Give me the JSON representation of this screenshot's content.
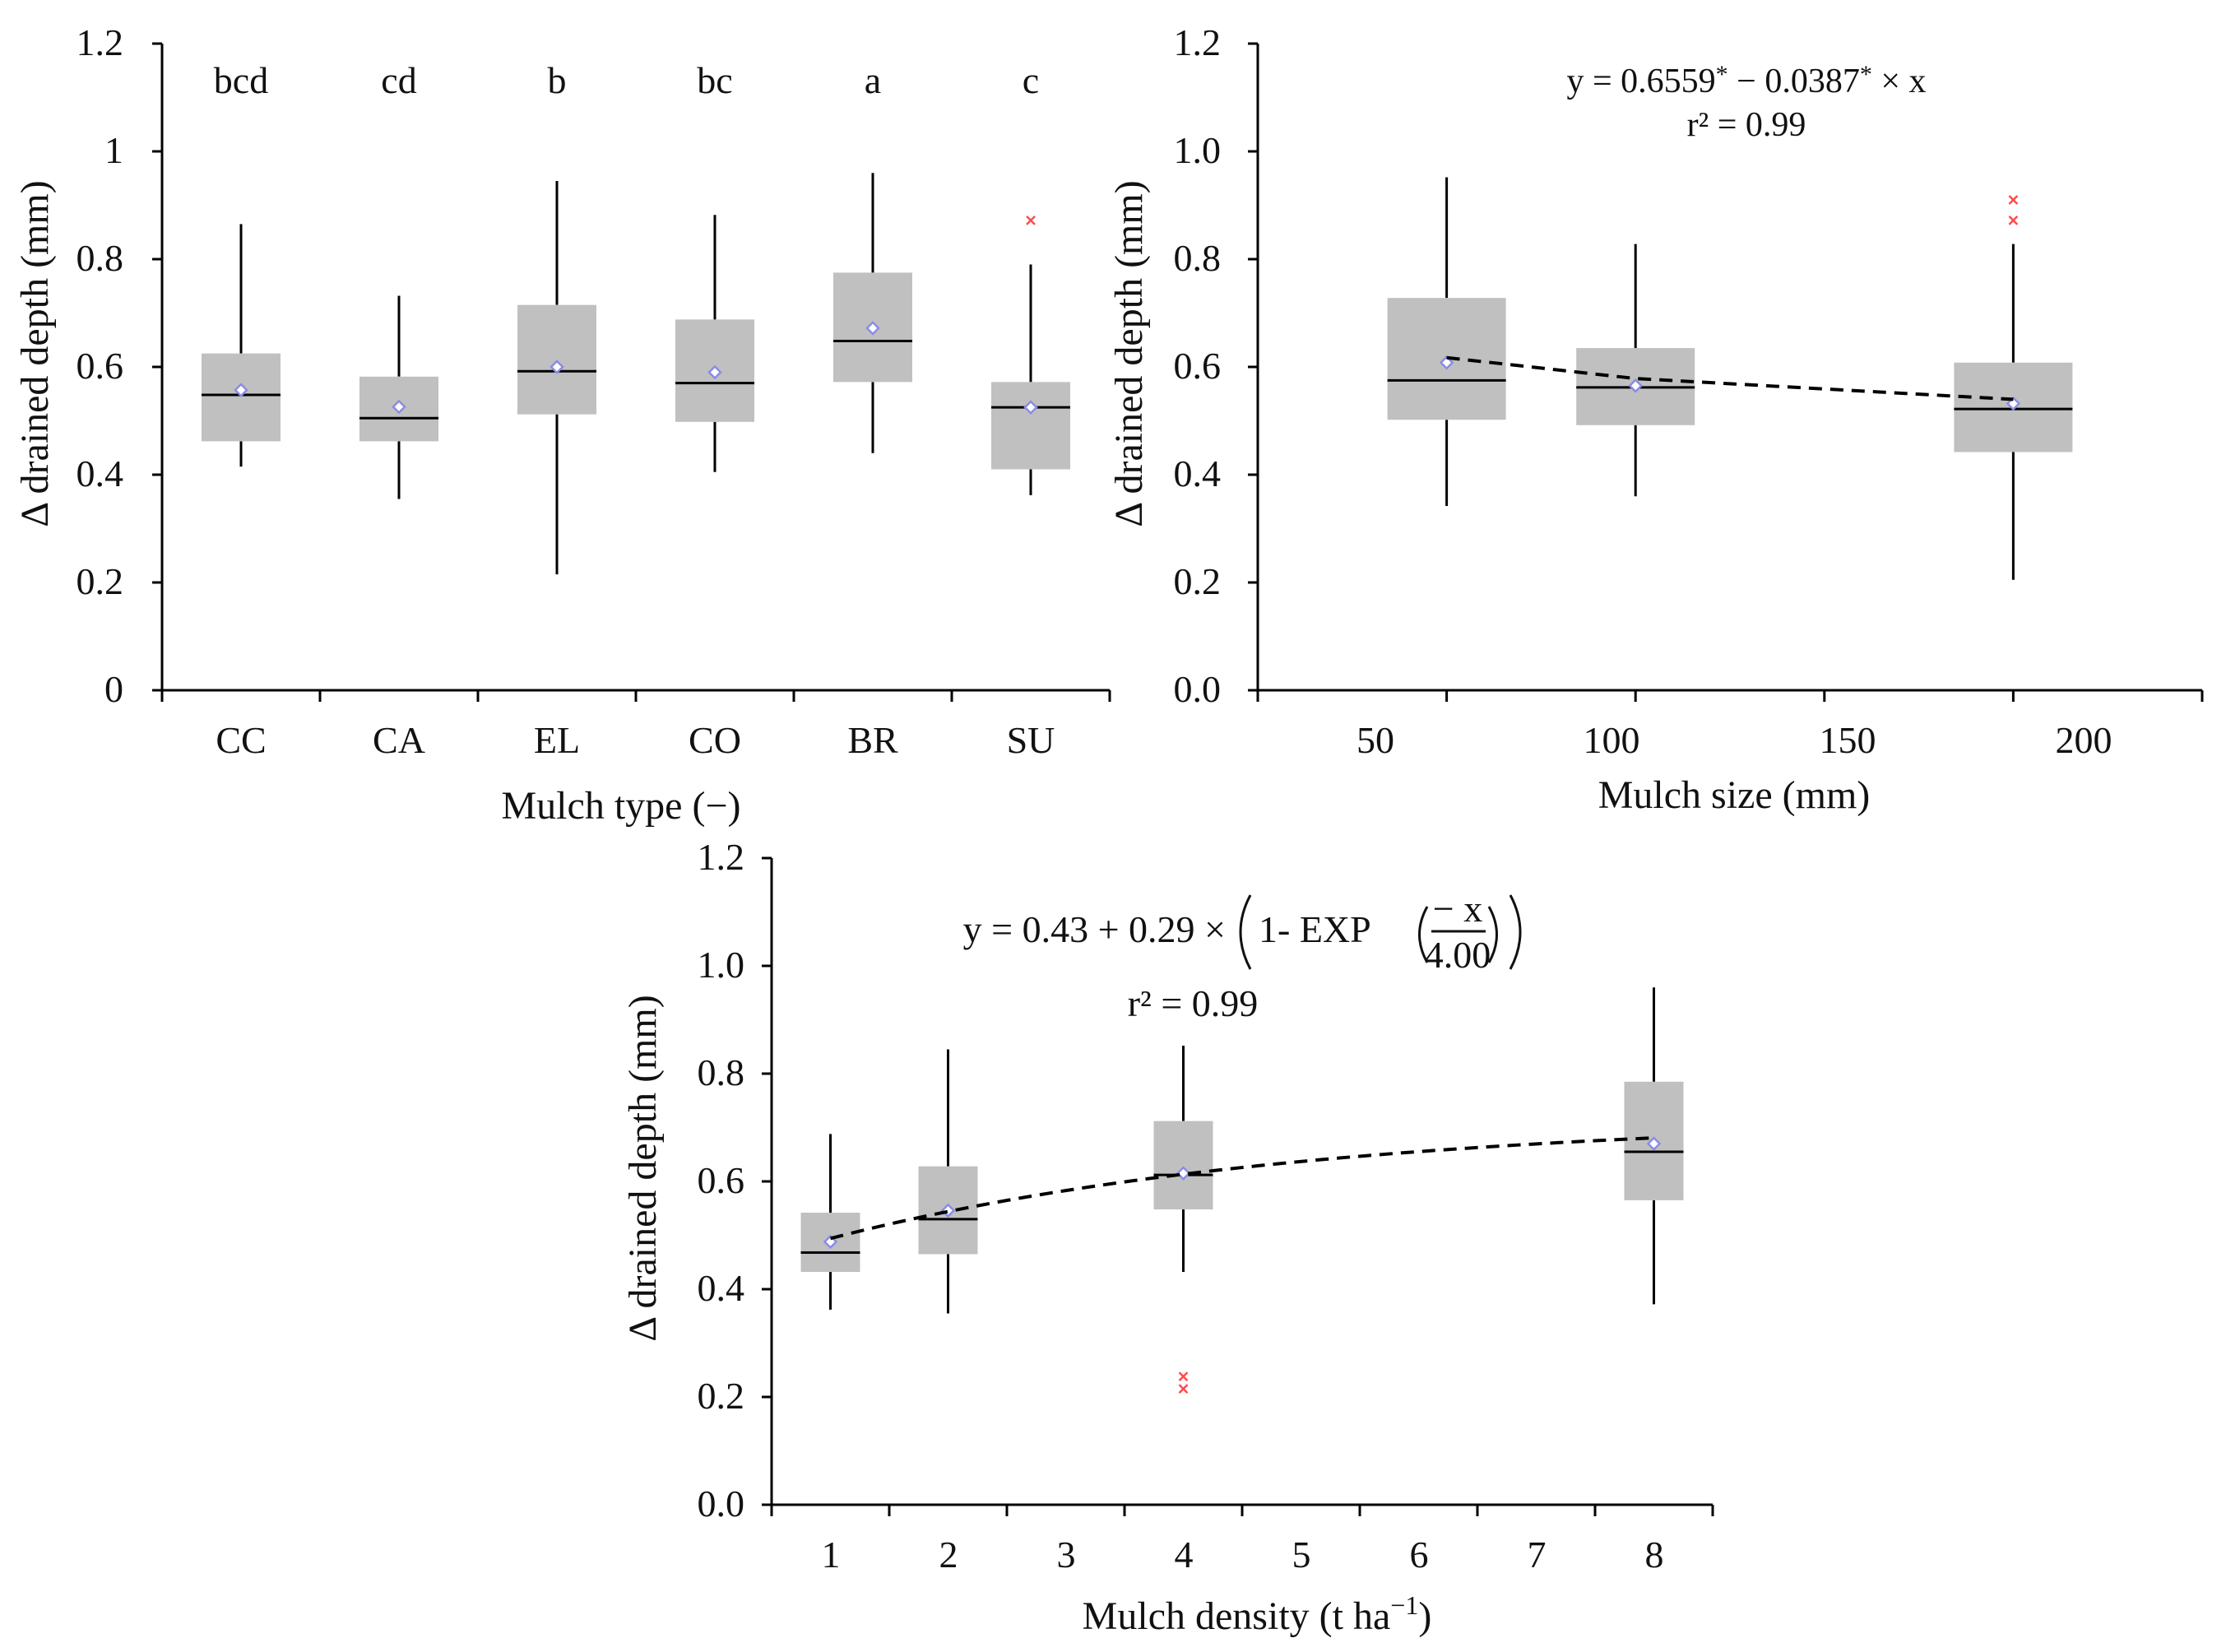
{
  "chart_data": [
    {
      "type": "box",
      "id": "mulch-type",
      "title": "",
      "xlabel": "Mulch type (−)",
      "ylabel": "Δ drained depth (mm)",
      "ylim": [
        0,
        1.2
      ],
      "yticks": [
        "0",
        "0.2",
        "0.4",
        "0.6",
        "0.8",
        "1",
        "1.2"
      ],
      "categories": [
        "CC",
        "CA",
        "EL",
        "CO",
        "BR",
        "SU"
      ],
      "letters": [
        "bcd",
        "cd",
        "b",
        "bc",
        "a",
        "c"
      ],
      "boxes": [
        {
          "label": "CC",
          "min": 0.415,
          "q1": 0.462,
          "median": 0.548,
          "q3": 0.625,
          "max": 0.865,
          "mean": 0.557,
          "outliers": []
        },
        {
          "label": "CA",
          "min": 0.355,
          "q1": 0.462,
          "median": 0.505,
          "q3": 0.582,
          "max": 0.732,
          "mean": 0.526,
          "outliers": []
        },
        {
          "label": "EL",
          "min": 0.215,
          "q1": 0.512,
          "median": 0.592,
          "q3": 0.715,
          "max": 0.945,
          "mean": 0.6,
          "outliers": []
        },
        {
          "label": "CO",
          "min": 0.405,
          "q1": 0.498,
          "median": 0.57,
          "q3": 0.688,
          "max": 0.882,
          "mean": 0.59,
          "outliers": []
        },
        {
          "label": "BR",
          "min": 0.44,
          "q1": 0.572,
          "median": 0.648,
          "q3": 0.775,
          "max": 0.96,
          "mean": 0.672,
          "outliers": []
        },
        {
          "label": "SU",
          "min": 0.362,
          "q1": 0.41,
          "median": 0.525,
          "q3": 0.572,
          "max": 0.79,
          "mean": 0.525,
          "outliers": [
            0.872
          ]
        }
      ]
    },
    {
      "type": "box",
      "id": "mulch-size",
      "title": "",
      "xlabel": "Mulch size (mm)",
      "ylabel": "Δ drained depth (mm)",
      "ylim": [
        0,
        1.2
      ],
      "xlim": [
        0,
        250
      ],
      "yticks": [
        "0.0",
        "0.2",
        "0.4",
        "0.6",
        "0.8",
        "1.0",
        "1.2"
      ],
      "xticks": [
        0,
        50,
        100,
        150,
        200,
        250
      ],
      "xticklabels": [
        "50",
        "100",
        "150",
        "200"
      ],
      "xticklabel_values": [
        50,
        100,
        150,
        200
      ],
      "boxes": [
        {
          "x": 50,
          "min": 0.342,
          "q1": 0.502,
          "median": 0.575,
          "q3": 0.728,
          "max": 0.952,
          "mean": 0.608,
          "outliers": []
        },
        {
          "x": 100,
          "min": 0.36,
          "q1": 0.492,
          "median": 0.562,
          "q3": 0.635,
          "max": 0.828,
          "mean": 0.565,
          "outliers": []
        },
        {
          "x": 200,
          "min": 0.205,
          "q1": 0.442,
          "median": 0.522,
          "q3": 0.608,
          "max": 0.828,
          "mean": 0.532,
          "outliers": [
            0.872,
            0.91
          ]
        }
      ],
      "fit": {
        "intercept": 0.6559,
        "slope": -0.0387,
        "x_start": 50,
        "x_end": 200
      },
      "equation_parts": [
        "y = 0.6559",
        "*",
        " − 0.0387",
        "*",
        " × x"
      ],
      "r2_text": "r² = 0.99"
    },
    {
      "type": "box",
      "id": "mulch-density",
      "title": "",
      "xlabel_main": "Mulch density (t ha",
      "xlabel_exp": "−1",
      "xlabel_close": ")",
      "ylabel": "Δ drained depth (mm)",
      "ylim": [
        0,
        1.2
      ],
      "xlim": [
        0.5,
        8.5
      ],
      "yticks": [
        "0.0",
        "0.2",
        "0.4",
        "0.6",
        "0.8",
        "1.0",
        "1.2"
      ],
      "xticklabels": [
        "1",
        "2",
        "3",
        "4",
        "5",
        "6",
        "7",
        "8"
      ],
      "boxes": [
        {
          "x": 1,
          "min": 0.362,
          "q1": 0.432,
          "median": 0.468,
          "q3": 0.542,
          "max": 0.688,
          "mean": 0.488,
          "outliers": []
        },
        {
          "x": 2,
          "min": 0.355,
          "q1": 0.465,
          "median": 0.53,
          "q3": 0.628,
          "max": 0.845,
          "mean": 0.546,
          "outliers": []
        },
        {
          "x": 4,
          "min": 0.432,
          "q1": 0.548,
          "median": 0.612,
          "q3": 0.712,
          "max": 0.852,
          "mean": 0.615,
          "outliers": [
            0.215,
            0.238
          ]
        },
        {
          "x": 8,
          "min": 0.372,
          "q1": 0.565,
          "median": 0.655,
          "q3": 0.785,
          "max": 0.96,
          "mean": 0.67,
          "outliers": []
        }
      ],
      "fit": {
        "a": 0.43,
        "b": 0.29,
        "c": 4.0,
        "x_start": 1,
        "x_end": 8
      },
      "equation": {
        "lhs": "y = 0.43 + 0.29 ×",
        "one_minus": "1- EXP",
        "numerator": "− x",
        "denominator": "4.00"
      },
      "r2_text": "r² = 0.99"
    }
  ]
}
